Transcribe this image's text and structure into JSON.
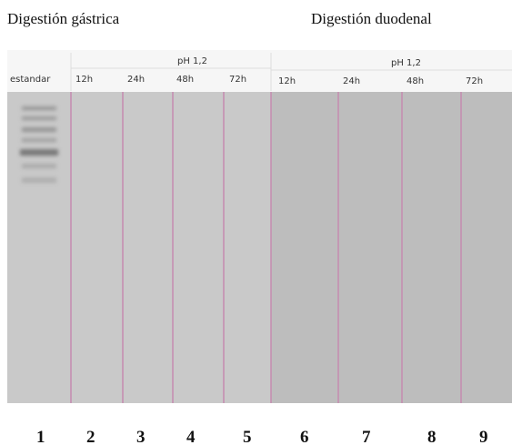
{
  "titles": [
    "Digestión gástrica",
    "Digestión duodenal"
  ],
  "standard_label": "estandar",
  "panels": [
    {
      "condition": "pH 1,2",
      "lanes": [
        "12h",
        "24h",
        "48h",
        "72h"
      ]
    },
    {
      "condition": "pH 1,2",
      "lanes": [
        "12h",
        "24h",
        "48h",
        "72h"
      ]
    }
  ],
  "lane_numbers": [
    "1",
    "2",
    "3",
    "4",
    "5",
    "6",
    "7",
    "8",
    "9"
  ]
}
